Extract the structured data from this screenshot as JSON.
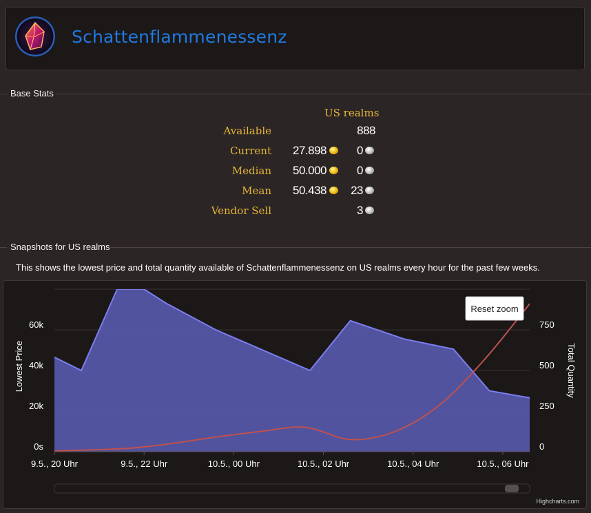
{
  "item": {
    "name": "Schattenflammenessenz",
    "icon": "shadowflame-essence-icon"
  },
  "base_stats": {
    "section_title": "Base Stats",
    "column_header": "US realms",
    "rows": [
      {
        "label": "Available",
        "gold": "",
        "silver": "888",
        "gold_coin": false,
        "silver_coin": false
      },
      {
        "label": "Current",
        "gold": "27.898",
        "silver": "0",
        "gold_coin": true,
        "silver_coin": true
      },
      {
        "label": "Median",
        "gold": "50.000",
        "silver": "0",
        "gold_coin": true,
        "silver_coin": true
      },
      {
        "label": "Mean",
        "gold": "50.438",
        "silver": "23",
        "gold_coin": true,
        "silver_coin": true
      },
      {
        "label": "Vendor Sell",
        "gold": "",
        "silver": "3",
        "gold_coin": false,
        "silver_coin": true
      }
    ]
  },
  "snapshots": {
    "section_title": "Snapshots for US realms",
    "description": "This shows the lowest price and total quantity available of Schattenflammenessenz on US realms every hour for the past few weeks."
  },
  "chart": {
    "reset_zoom_label": "Reset zoom",
    "credits": "Highcharts.com",
    "colors": {
      "price": "#7b7ef0",
      "price_fill": "#5456a6",
      "quantity": "#c0504d"
    }
  },
  "chart_data": {
    "type": "area",
    "x_labels": [
      "9.5., 20 Uhr",
      "9.5., 22 Uhr",
      "10.5., 00 Uhr",
      "10.5., 02 Uhr",
      "10.5., 04 Uhr",
      "10.5., 06 Uhr"
    ],
    "x_range_hours": [
      0,
      10.6
    ],
    "series": [
      {
        "name": "Lowest Price",
        "axis": "left",
        "type": "area",
        "x": [
          0,
          0.6,
          1.4,
          2.0,
          2.5,
          3.6,
          5.7,
          6.6,
          7.8,
          8.9,
          9.7,
          10.6
        ],
        "values": [
          46500,
          40000,
          80000,
          80000,
          73000,
          60000,
          40000,
          64500,
          55500,
          50500,
          30000,
          26500
        ]
      },
      {
        "name": "Total Quantity",
        "axis": "right",
        "type": "line",
        "x": [
          0,
          1.6,
          2.6,
          3.6,
          4.6,
          5.6,
          6.6,
          7.6,
          8.6,
          9.6,
          10.6
        ],
        "values": [
          5,
          20,
          50,
          90,
          125,
          150,
          75,
          125,
          290,
          570,
          910
        ]
      }
    ],
    "y_left": {
      "label": "Lowest Price",
      "ticks": [
        "0s",
        "20k",
        "40k",
        "60k"
      ],
      "tick_values": [
        0,
        20000,
        40000,
        60000
      ],
      "range": [
        0,
        80000
      ]
    },
    "y_right": {
      "label": "Total Quantity",
      "ticks": [
        "0",
        "250",
        "500",
        "750"
      ],
      "tick_values": [
        0,
        250,
        500,
        750
      ],
      "range": [
        0,
        1000
      ]
    }
  }
}
